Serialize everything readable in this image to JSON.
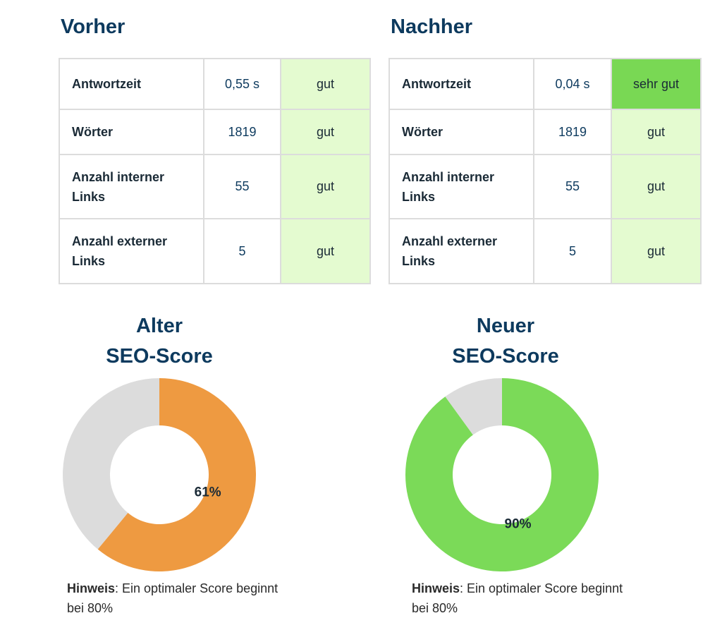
{
  "before": {
    "heading": "Vorher",
    "rows": [
      {
        "label": "Antwortzeit",
        "value": "0,55 s",
        "rating": "gut",
        "rating_level": "good"
      },
      {
        "label": "Wörter",
        "value": "1819",
        "rating": "gut",
        "rating_level": "good"
      },
      {
        "label": "Anzahl interner Links",
        "value": "55",
        "rating": "gut",
        "rating_level": "good"
      },
      {
        "label": "Anzahl externer Links",
        "value": "5",
        "rating": "gut",
        "rating_level": "good"
      }
    ]
  },
  "after": {
    "heading": "Nachher",
    "rows": [
      {
        "label": "Antwortzeit",
        "value": "0,04 s",
        "rating": "sehr gut",
        "rating_level": "very-good"
      },
      {
        "label": "Wörter",
        "value": "1819",
        "rating": "gut",
        "rating_level": "good"
      },
      {
        "label": "Anzahl interner Links",
        "value": "55",
        "rating": "gut",
        "rating_level": "good"
      },
      {
        "label": "Anzahl externer Links",
        "value": "5",
        "rating": "gut",
        "rating_level": "good"
      }
    ]
  },
  "chart_data": [
    {
      "type": "pie",
      "title_line1": "Alter",
      "title_line2": "SEO-Score",
      "slices": [
        {
          "value": 61,
          "color": "#ee9a41",
          "label": "61%"
        },
        {
          "value": 39,
          "color": "#dcdcdc",
          "label": ""
        }
      ],
      "note_bold": "Hinweis",
      "note_text": ": Ein optimaler Score beginnt bei 80%"
    },
    {
      "type": "pie",
      "title_line1": "Neuer",
      "title_line2": "SEO-Score",
      "slices": [
        {
          "value": 90,
          "color": "#7bda58",
          "label": "90%"
        },
        {
          "value": 10,
          "color": "#dcdcdc",
          "label": ""
        }
      ],
      "note_bold": "Hinweis",
      "note_text": ": Ein optimaler Score beginnt bei 80%"
    }
  ]
}
